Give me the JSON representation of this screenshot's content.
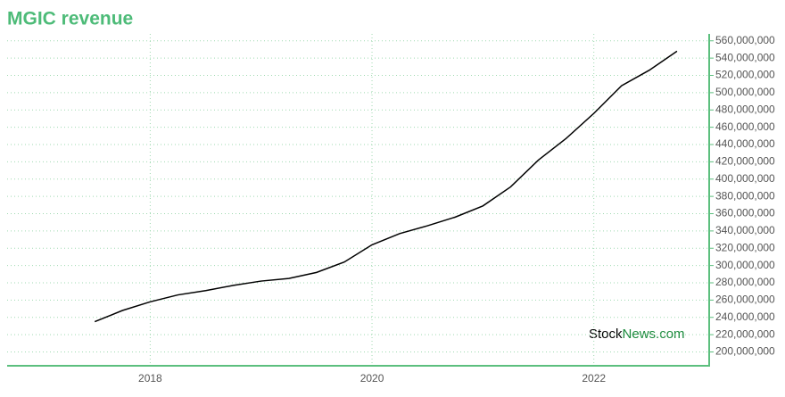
{
  "chart_data": {
    "type": "line",
    "title": "MGIC revenue",
    "watermark": [
      "Stock",
      "News.com"
    ],
    "x": [
      2017.5,
      2017.75,
      2018,
      2018.25,
      2018.5,
      2018.75,
      2019,
      2019.25,
      2019.5,
      2019.75,
      2020,
      2020.25,
      2020.5,
      2020.75,
      2021,
      2021.25,
      2021.5,
      2021.75,
      2022,
      2022.25,
      2022.5,
      2022.75
    ],
    "series": [
      {
        "name": "Revenue",
        "color": "#000000",
        "values": [
          235000000,
          248000000,
          258000000,
          266000000,
          271000000,
          277000000,
          282000000,
          285000000,
          292000000,
          304000000,
          324000000,
          337000000,
          346000000,
          356000000,
          369000000,
          391000000,
          422000000,
          447000000,
          476000000,
          508000000,
          526000000,
          548000000
        ]
      }
    ],
    "xlim": [
      2016.71,
      2023.04
    ],
    "xticks": [
      2018,
      2020,
      2022
    ],
    "ylim": [
      184000000,
      568000000
    ],
    "yticks": [
      {
        "value": 200000000,
        "label": "200,000,000"
      },
      {
        "value": 220000000,
        "label": "220,000,000"
      },
      {
        "value": 240000000,
        "label": "240,000,000"
      },
      {
        "value": 260000000,
        "label": "260,000,000"
      },
      {
        "value": 280000000,
        "label": "280,000,000"
      },
      {
        "value": 300000000,
        "label": "300,000,000"
      },
      {
        "value": 320000000,
        "label": "320,000,000"
      },
      {
        "value": 340000000,
        "label": "340,000,000"
      },
      {
        "value": 360000000,
        "label": "360,000,000"
      },
      {
        "value": 380000000,
        "label": "380,000,000"
      },
      {
        "value": 400000000,
        "label": "400,000,000"
      },
      {
        "value": 420000000,
        "label": "420,000,000"
      },
      {
        "value": 440000000,
        "label": "440,000,000"
      },
      {
        "value": 460000000,
        "label": "460,000,000"
      },
      {
        "value": 480000000,
        "label": "480,000,000"
      },
      {
        "value": 500000000,
        "label": "500,000,000"
      },
      {
        "value": 520000000,
        "label": "520,000,000"
      },
      {
        "value": 540000000,
        "label": "540,000,000"
      },
      {
        "value": 560000000,
        "label": "560,000,000"
      }
    ],
    "grid": true,
    "axis_color": "#5cbf7e"
  }
}
